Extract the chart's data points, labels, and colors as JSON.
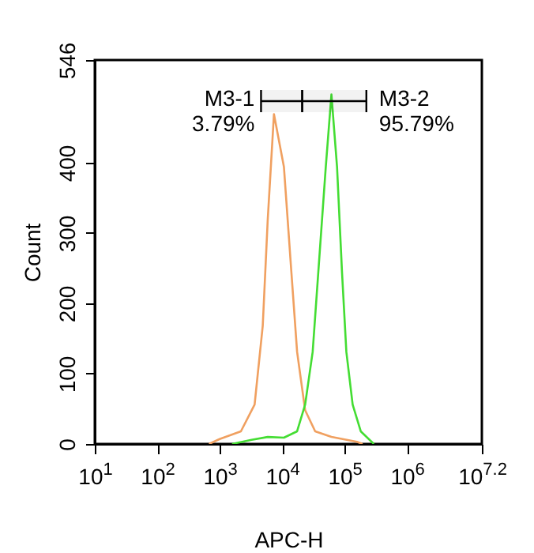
{
  "chart_data": {
    "type": "line",
    "xlabel": "APC-H",
    "ylabel": "Count",
    "log": "x",
    "grid": false,
    "marker": "none",
    "line_style": "solid",
    "xlim": [
      10,
      15848932
    ],
    "ylim": [
      0,
      546
    ],
    "xticks": [
      {
        "value": 10,
        "label": "10$^{1}$"
      },
      {
        "value": 100,
        "label": "10$^{2}$"
      },
      {
        "value": 1000,
        "label": "10$^{3}$"
      },
      {
        "value": 10000,
        "label": "10$^{4}$"
      },
      {
        "value": 100000,
        "label": "10$^{5}$"
      },
      {
        "value": 1000000,
        "label": "10$^{6}$"
      },
      {
        "value": 15848932,
        "label": "10$^{7.2}$"
      }
    ],
    "yticks": [
      0,
      100,
      200,
      300,
      400,
      546
    ],
    "series": [
      {
        "color": "#f0a060",
        "x": [
          676,
          1000,
          2190,
          3630,
          4900,
          5890,
          7410,
          10700,
          14100,
          17400,
          23400,
          33900,
          61700,
          158000,
          195000
        ],
        "values": [
          0,
          7,
          18,
          56,
          168,
          319,
          469,
          394,
          244,
          131,
          48,
          18,
          10,
          3,
          0
        ]
      },
      {
        "color": "#44dd33",
        "x": [
          1580,
          3240,
          5890,
          10700,
          17400,
          23400,
          30900,
          38000,
          50100,
          61700,
          75900,
          91200,
          107000,
          135000,
          182000,
          295000
        ],
        "values": [
          0,
          6,
          10,
          9,
          18,
          56,
          131,
          244,
          394,
          497,
          394,
          244,
          131,
          56,
          18,
          0
        ]
      }
    ],
    "bands": [
      {
        "axis": "x",
        "from": 4600,
        "to": 21000,
        "label": "M3-1\n3.79%",
        "color": "#000000"
      },
      {
        "axis": "x",
        "from": 21000,
        "to": 224000,
        "label": "M3-2\n95.79%",
        "color": "#000000"
      }
    ]
  }
}
